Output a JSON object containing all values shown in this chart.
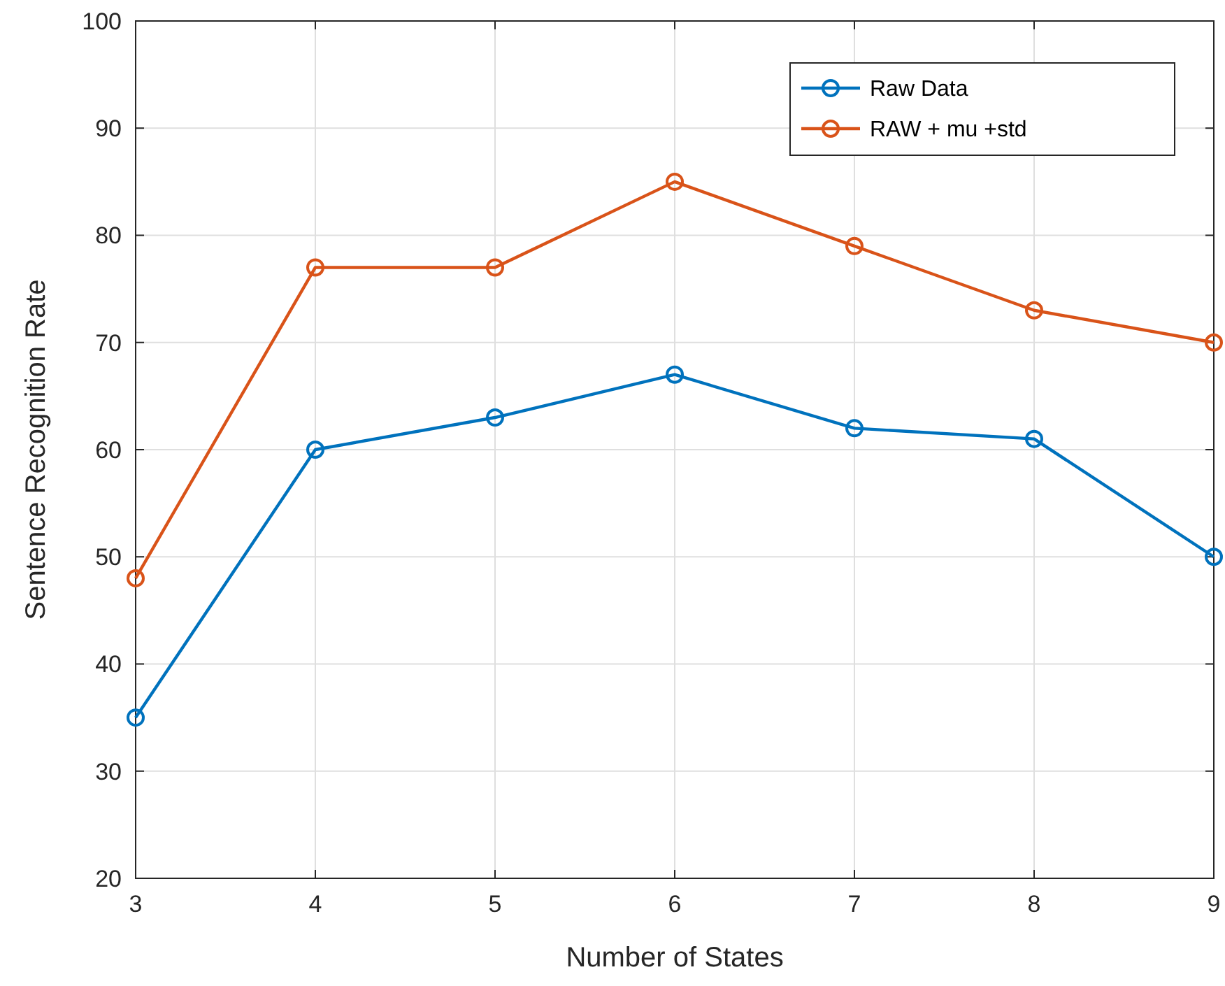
{
  "chart_data": {
    "type": "line",
    "xlabel": "Number of States",
    "ylabel": "Sentence Recognition Rate",
    "x": [
      3,
      4,
      5,
      6,
      7,
      8,
      9
    ],
    "series": [
      {
        "name": "Raw Data",
        "color": "#0072bd",
        "values": [
          35,
          60,
          63,
          67,
          62,
          61,
          50
        ]
      },
      {
        "name": "RAW + mu +std",
        "color": "#d95319",
        "values": [
          48,
          77,
          77,
          85,
          79,
          73,
          70
        ]
      }
    ],
    "xlim": [
      3,
      9
    ],
    "xticks": [
      3,
      4,
      5,
      6,
      7,
      8,
      9
    ],
    "ylim": [
      20,
      100
    ],
    "yticks": [
      20,
      30,
      40,
      50,
      60,
      70,
      80,
      90,
      100
    ],
    "grid": true,
    "legend": "top right",
    "marker": "circle",
    "line_style": "solid"
  }
}
